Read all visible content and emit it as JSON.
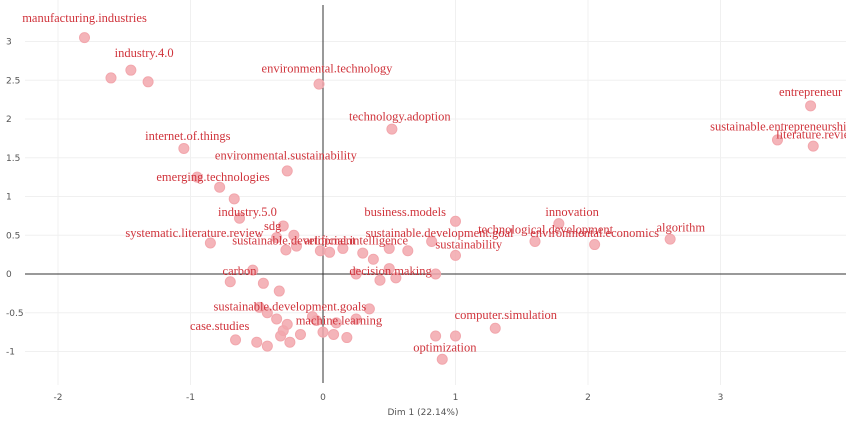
{
  "chart_data": {
    "type": "scatter",
    "title": "",
    "xlabel": "Dim 1 (22.14%)",
    "ylabel": "",
    "xlim": [
      -2.45,
      3.95
    ],
    "ylim": [
      -1.45,
      3.35
    ],
    "x_ticks": [
      -2,
      -1,
      0,
      1,
      2,
      3
    ],
    "y_ticks": [
      -1,
      -0.5,
      0,
      0.5,
      1,
      1.5,
      2,
      2.5,
      3
    ],
    "grid": false,
    "point_color": "#f2a7ad",
    "label_color": "#d0343c",
    "points": [
      {
        "x": -1.8,
        "y": 3.05
      },
      {
        "x": -1.6,
        "y": 2.53
      },
      {
        "x": -1.45,
        "y": 2.63
      },
      {
        "x": -1.32,
        "y": 2.48
      },
      {
        "x": -1.05,
        "y": 1.62
      },
      {
        "x": -0.95,
        "y": 1.25
      },
      {
        "x": -0.78,
        "y": 1.12
      },
      {
        "x": -0.67,
        "y": 0.97
      },
      {
        "x": -0.03,
        "y": 2.45
      },
      {
        "x": 0.52,
        "y": 1.87
      },
      {
        "x": -0.27,
        "y": 1.33
      },
      {
        "x": -0.3,
        "y": 0.62
      },
      {
        "x": -0.35,
        "y": 0.47
      },
      {
        "x": -0.22,
        "y": 0.5
      },
      {
        "x": -0.2,
        "y": 0.36
      },
      {
        "x": -0.28,
        "y": 0.31
      },
      {
        "x": -0.02,
        "y": 0.3
      },
      {
        "x": 0.05,
        "y": 0.28
      },
      {
        "x": 0.15,
        "y": 0.33
      },
      {
        "x": 0.3,
        "y": 0.27
      },
      {
        "x": -0.85,
        "y": 0.4
      },
      {
        "x": -0.63,
        "y": 0.72
      },
      {
        "x": 0.5,
        "y": 0.33
      },
      {
        "x": 0.64,
        "y": 0.3
      },
      {
        "x": 1.0,
        "y": 0.68
      },
      {
        "x": 1.0,
        "y": 0.24
      },
      {
        "x": 0.82,
        "y": 0.42
      },
      {
        "x": 1.6,
        "y": 0.42
      },
      {
        "x": 1.78,
        "y": 0.65
      },
      {
        "x": 2.05,
        "y": 0.38
      },
      {
        "x": 2.62,
        "y": 0.45
      },
      {
        "x": 3.68,
        "y": 2.17
      },
      {
        "x": 3.43,
        "y": 1.73
      },
      {
        "x": 3.7,
        "y": 1.65
      },
      {
        "x": 0.5,
        "y": 0.07
      },
      {
        "x": 0.43,
        "y": -0.08
      },
      {
        "x": 0.55,
        "y": -0.05
      },
      {
        "x": 0.85,
        "y": 0.0
      },
      {
        "x": 0.38,
        "y": 0.19
      },
      {
        "x": 0.25,
        "y": 0.0
      },
      {
        "x": -0.53,
        "y": 0.05
      },
      {
        "x": -0.7,
        "y": -0.1
      },
      {
        "x": -0.45,
        "y": -0.12
      },
      {
        "x": -0.33,
        "y": -0.22
      },
      {
        "x": -0.48,
        "y": -0.43
      },
      {
        "x": -0.42,
        "y": -0.5
      },
      {
        "x": -0.35,
        "y": -0.58
      },
      {
        "x": -0.3,
        "y": -0.73
      },
      {
        "x": -0.66,
        "y": -0.85
      },
      {
        "x": -0.5,
        "y": -0.88
      },
      {
        "x": -0.42,
        "y": -0.93
      },
      {
        "x": -0.32,
        "y": -0.8
      },
      {
        "x": -0.27,
        "y": -0.65
      },
      {
        "x": -0.17,
        "y": -0.78
      },
      {
        "x": -0.08,
        "y": -0.55
      },
      {
        "x": 0.0,
        "y": -0.75
      },
      {
        "x": 0.1,
        "y": -0.63
      },
      {
        "x": 0.18,
        "y": -0.82
      },
      {
        "x": 0.35,
        "y": -0.45
      },
      {
        "x": 0.25,
        "y": -0.58
      },
      {
        "x": 0.08,
        "y": -0.78
      },
      {
        "x": -0.05,
        "y": -0.6
      },
      {
        "x": 0.85,
        "y": -0.8
      },
      {
        "x": 0.9,
        "y": -1.1
      },
      {
        "x": 1.0,
        "y": -0.8
      },
      {
        "x": 1.3,
        "y": -0.7
      },
      {
        "x": -0.25,
        "y": -0.88
      }
    ],
    "labels": [
      {
        "text": "manufacturing.industries",
        "x": -1.8,
        "y": 3.25,
        "anchor": "middle"
      },
      {
        "text": "industry.4.0",
        "x": -1.35,
        "y": 2.8,
        "anchor": "middle"
      },
      {
        "text": "environmental.technology",
        "x": 0.03,
        "y": 2.6,
        "anchor": "middle"
      },
      {
        "text": "technology.adoption",
        "x": 0.58,
        "y": 1.98,
        "anchor": "middle"
      },
      {
        "text": "entrepreneur",
        "x": 3.68,
        "y": 2.3,
        "anchor": "middle"
      },
      {
        "text": "sustainable.entrepreneurship",
        "x": 3.46,
        "y": 1.85,
        "anchor": "middle"
      },
      {
        "text": "literature.review",
        "x": 3.73,
        "y": 1.75,
        "anchor": "middle"
      },
      {
        "text": "internet.of.things",
        "x": -1.02,
        "y": 1.73,
        "anchor": "middle"
      },
      {
        "text": "environmental.sustainability",
        "x": -0.28,
        "y": 1.48,
        "anchor": "middle"
      },
      {
        "text": "emerging.technologies",
        "x": -0.83,
        "y": 1.2,
        "anchor": "middle"
      },
      {
        "text": "industry.5.0",
        "x": -0.57,
        "y": 0.75,
        "anchor": "middle"
      },
      {
        "text": "business.models",
        "x": 0.62,
        "y": 0.75,
        "anchor": "middle"
      },
      {
        "text": "innovation",
        "x": 1.88,
        "y": 0.75,
        "anchor": "middle"
      },
      {
        "text": "sdg",
        "x": -0.38,
        "y": 0.57,
        "anchor": "middle"
      },
      {
        "text": "systematic.literature.review",
        "x": -0.97,
        "y": 0.48,
        "anchor": "middle"
      },
      {
        "text": "sustainable.development.goal",
        "x": 0.88,
        "y": 0.48,
        "anchor": "middle"
      },
      {
        "text": "technological.development",
        "x": 1.68,
        "y": 0.52,
        "anchor": "middle"
      },
      {
        "text": "environmental.economics",
        "x": 2.05,
        "y": 0.48,
        "anchor": "middle"
      },
      {
        "text": "algorithm",
        "x": 2.7,
        "y": 0.55,
        "anchor": "middle"
      },
      {
        "text": "sustainable.development",
        "x": -0.22,
        "y": 0.38,
        "anchor": "middle"
      },
      {
        "text": "artificial.intelligence",
        "x": 0.25,
        "y": 0.38,
        "anchor": "middle"
      },
      {
        "text": "sustainability",
        "x": 1.1,
        "y": 0.33,
        "anchor": "middle"
      },
      {
        "text": "decision.making",
        "x": 0.51,
        "y": -0.01,
        "anchor": "middle"
      },
      {
        "text": "carbon",
        "x": -0.63,
        "y": -0.01,
        "anchor": "middle"
      },
      {
        "text": "sustainable.development.goals",
        "x": -0.25,
        "y": -0.47,
        "anchor": "middle"
      },
      {
        "text": "machine.learning",
        "x": 0.12,
        "y": -0.65,
        "anchor": "middle"
      },
      {
        "text": "computer.simulation",
        "x": 1.38,
        "y": -0.58,
        "anchor": "middle"
      },
      {
        "text": "case.studies",
        "x": -0.78,
        "y": -0.72,
        "anchor": "middle"
      },
      {
        "text": "optimization",
        "x": 0.92,
        "y": -1.0,
        "anchor": "middle"
      }
    ]
  }
}
